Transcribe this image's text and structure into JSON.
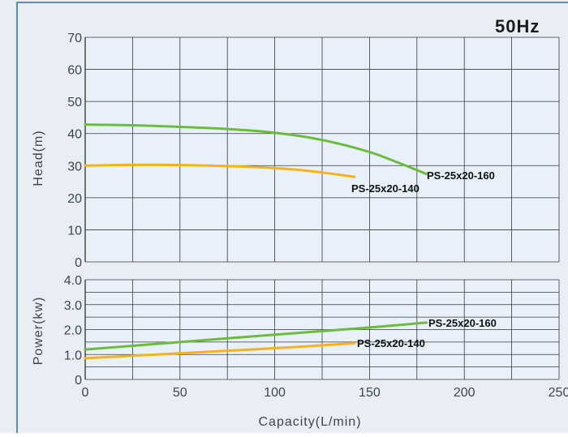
{
  "frequency_label": "50Hz",
  "colors": {
    "background": "#e9eef5",
    "plot_background": "#e8f0fa",
    "frame": "#2d6f9b",
    "grid": "#3a3a3a",
    "series_160": "#6cbb3c",
    "series_140": "#f5b21b"
  },
  "chart_data": [
    {
      "type": "line",
      "ylabel": "Head(m)",
      "xlim": [
        0,
        250
      ],
      "ylim": [
        0,
        70
      ],
      "yticks": [
        0,
        10,
        20,
        30,
        40,
        50,
        60,
        70
      ],
      "grid": true,
      "series": [
        {
          "name": "PS-25x20-160",
          "color": "#6cbb3c",
          "points": [
            [
              0,
              42.8
            ],
            [
              25,
              42.6
            ],
            [
              50,
              42.1
            ],
            [
              75,
              41.5
            ],
            [
              100,
              40.4
            ],
            [
              125,
              38.2
            ],
            [
              150,
              34.4
            ],
            [
              165,
              31.0
            ],
            [
              180,
              27.4
            ]
          ]
        },
        {
          "name": "PS-25x20-140",
          "color": "#f5b21b",
          "points": [
            [
              0,
              30.0
            ],
            [
              25,
              30.3
            ],
            [
              50,
              30.2
            ],
            [
              75,
              29.9
            ],
            [
              100,
              29.3
            ],
            [
              120,
              28.3
            ],
            [
              142,
              26.5
            ]
          ]
        }
      ]
    },
    {
      "type": "line",
      "xlabel": "Capacity(L/min)",
      "ylabel": "Power(kw)",
      "xlim": [
        0,
        250
      ],
      "ylim": [
        0,
        4
      ],
      "xticks": [
        0,
        50,
        100,
        150,
        200,
        250
      ],
      "yticks": [
        "0",
        "1.0",
        "2.0",
        "3.0",
        "4.0"
      ],
      "grid": true,
      "series": [
        {
          "name": "PS-25x20-160",
          "color": "#6cbb3c",
          "points": [
            [
              0,
              1.2
            ],
            [
              50,
              1.5
            ],
            [
              100,
              1.8
            ],
            [
              150,
              2.08
            ],
            [
              180,
              2.28
            ]
          ]
        },
        {
          "name": "PS-25x20-140",
          "color": "#f5b21b",
          "points": [
            [
              0,
              0.85
            ],
            [
              50,
              1.05
            ],
            [
              100,
              1.25
            ],
            [
              142,
              1.45
            ]
          ]
        }
      ]
    }
  ]
}
